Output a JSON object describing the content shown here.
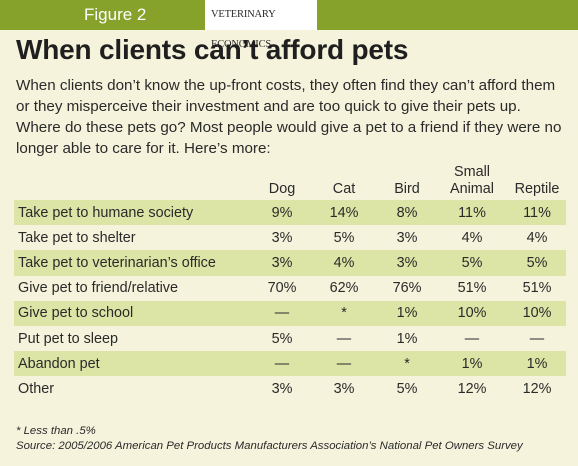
{
  "header": {
    "figure_label": "Figure 2",
    "brand": "VETERINARY ECONOMICS"
  },
  "title": "When clients can’t afford pets",
  "intro": "When clients don’t know the up-front costs, they often find they can’t afford them or they misperceive their investment and are too quick to give their pets up. Where do these pets go? Most people would give a pet to a friend if they were no longer able to care for it. Here’s more:",
  "chart_data": {
    "type": "table",
    "columns": [
      "Dog",
      "Cat",
      "Bird",
      "Small Animal",
      "Reptile"
    ],
    "column_headers": [
      {
        "line1": "",
        "line2": "Dog"
      },
      {
        "line1": "",
        "line2": "Cat"
      },
      {
        "line1": "",
        "line2": "Bird"
      },
      {
        "line1": "Small",
        "line2": "Animal"
      },
      {
        "line1": "",
        "line2": "Reptile"
      }
    ],
    "rows": [
      {
        "label": "Take pet to humane society",
        "cells": [
          "9%",
          "14%",
          "8%",
          "11%",
          "11%"
        ],
        "shaded": true
      },
      {
        "label": "Take pet to shelter",
        "cells": [
          "3%",
          "5%",
          "3%",
          "4%",
          "4%"
        ],
        "shaded": false
      },
      {
        "label": "Take pet to veterinarian’s office",
        "cells": [
          "3%",
          "4%",
          "3%",
          "5%",
          "5%"
        ],
        "shaded": true
      },
      {
        "label": "Give pet to friend/relative",
        "cells": [
          "70%",
          "62%",
          "76%",
          "51%",
          "51%"
        ],
        "shaded": false
      },
      {
        "label": "Give pet to school",
        "cells": [
          "—",
          "*",
          "1%",
          "10%",
          "10%"
        ],
        "shaded": true
      },
      {
        "label": "Put pet to sleep",
        "cells": [
          "5%",
          "—",
          "1%",
          "—",
          "—"
        ],
        "shaded": false
      },
      {
        "label": "Abandon pet",
        "cells": [
          "—",
          "—",
          "*",
          "1%",
          "1%"
        ],
        "shaded": true
      },
      {
        "label": "Other",
        "cells": [
          "3%",
          "3%",
          "5%",
          "12%",
          "12%"
        ],
        "shaded": false
      }
    ]
  },
  "footnotes": {
    "asterisk": "* Less than .5%",
    "source": "Source: 2005/2006 American Pet Products Manufacturers Association’s National Pet Owners Survey"
  },
  "colors": {
    "accent_green": "#86a22a",
    "row_shade": "#dde5a6",
    "background": "#f6f3dc"
  }
}
